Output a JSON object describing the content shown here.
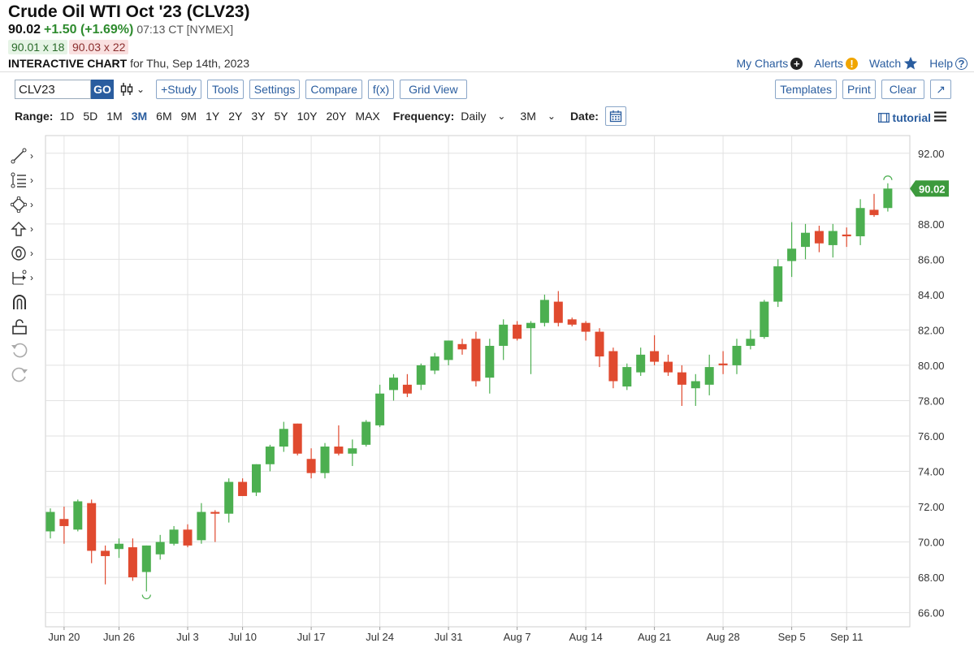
{
  "header": {
    "title": "Crude Oil WTI Oct '23 (CLV23)",
    "last": "90.02",
    "change": "+1.50 (+1.69%)",
    "time": "07:13 CT [NYMEX]",
    "bid": "90.01 x 18",
    "ask": "90.03 x 22",
    "chart_label": "INTERACTIVE CHART",
    "chart_for": "for Thu, Sep 14th, 2023"
  },
  "top_links": {
    "my_charts": "My Charts",
    "alerts": "Alerts",
    "watch": "Watch",
    "help": "Help"
  },
  "toolbar": {
    "symbol": "CLV23",
    "go": "GO",
    "study": "+Study",
    "tools": "Tools",
    "settings": "Settings",
    "compare": "Compare",
    "fx": "f(x)",
    "grid_view": "Grid View",
    "templates": "Templates",
    "print": "Print",
    "clear": "Clear",
    "expand": "↗"
  },
  "range_bar": {
    "range_label": "Range:",
    "ranges": [
      "1D",
      "5D",
      "1M",
      "3M",
      "6M",
      "9M",
      "1Y",
      "2Y",
      "3Y",
      "5Y",
      "10Y",
      "20Y",
      "MAX"
    ],
    "active_range": "3M",
    "frequency_label": "Frequency:",
    "frequency_value": "Daily",
    "period_value": "3M",
    "date_label": "Date:",
    "tutorial": "tutorial"
  },
  "colors": {
    "up": "#4caf50",
    "down": "#e04a2f",
    "accent": "#2a5d9f",
    "price_tag": "#3d9a3d"
  },
  "chart_data": {
    "type": "candlestick",
    "title": "Crude Oil WTI Oct '23 (CLV23)",
    "frequency": "Daily",
    "ylim": [
      65.2,
      93.0
    ],
    "y_ticks": [
      "66.00",
      "68.00",
      "70.00",
      "72.00",
      "74.00",
      "76.00",
      "78.00",
      "80.00",
      "82.00",
      "84.00",
      "86.00",
      "88.00",
      "90.00",
      "92.00"
    ],
    "x_ticks": [
      {
        "label": "Jun 20",
        "index": 1
      },
      {
        "label": "Jun 26",
        "index": 5
      },
      {
        "label": "Jul 3",
        "index": 10
      },
      {
        "label": "Jul 10",
        "index": 14
      },
      {
        "label": "Jul 17",
        "index": 19
      },
      {
        "label": "Jul 24",
        "index": 24
      },
      {
        "label": "Jul 31",
        "index": 29
      },
      {
        "label": "Aug 7",
        "index": 34
      },
      {
        "label": "Aug 14",
        "index": 39
      },
      {
        "label": "Aug 21",
        "index": 44
      },
      {
        "label": "Aug 28",
        "index": 49
      },
      {
        "label": "Sep 5",
        "index": 54
      },
      {
        "label": "Sep 11",
        "index": 58
      }
    ],
    "last_price_label": "90.02",
    "candles": [
      {
        "o": 70.6,
        "h": 71.9,
        "l": 70.2,
        "c": 71.7
      },
      {
        "o": 71.3,
        "h": 72.0,
        "l": 69.9,
        "c": 70.9
      },
      {
        "o": 70.7,
        "h": 72.4,
        "l": 70.6,
        "c": 72.3
      },
      {
        "o": 72.2,
        "h": 72.4,
        "l": 68.8,
        "c": 69.5
      },
      {
        "o": 69.5,
        "h": 69.8,
        "l": 67.6,
        "c": 69.2
      },
      {
        "o": 69.6,
        "h": 70.2,
        "l": 69.1,
        "c": 69.9
      },
      {
        "o": 69.7,
        "h": 70.2,
        "l": 67.8,
        "c": 68.0
      },
      {
        "o": 68.3,
        "h": 69.8,
        "l": 67.2,
        "c": 69.8
      },
      {
        "o": 69.3,
        "h": 70.4,
        "l": 69.0,
        "c": 70.0
      },
      {
        "o": 69.9,
        "h": 70.9,
        "l": 69.8,
        "c": 70.7
      },
      {
        "o": 70.7,
        "h": 71.0,
        "l": 69.7,
        "c": 69.8
      },
      {
        "o": 70.1,
        "h": 72.2,
        "l": 69.9,
        "c": 71.7
      },
      {
        "o": 71.7,
        "h": 71.8,
        "l": 70.0,
        "c": 71.6
      },
      {
        "o": 71.6,
        "h": 73.6,
        "l": 71.1,
        "c": 73.4
      },
      {
        "o": 73.4,
        "h": 73.6,
        "l": 72.6,
        "c": 72.6
      },
      {
        "o": 72.8,
        "h": 74.4,
        "l": 72.6,
        "c": 74.4
      },
      {
        "o": 74.4,
        "h": 75.5,
        "l": 74.0,
        "c": 75.4
      },
      {
        "o": 75.4,
        "h": 76.8,
        "l": 75.1,
        "c": 76.4
      },
      {
        "o": 76.7,
        "h": 76.7,
        "l": 74.9,
        "c": 75.0
      },
      {
        "o": 74.7,
        "h": 75.3,
        "l": 73.6,
        "c": 73.9
      },
      {
        "o": 73.9,
        "h": 75.6,
        "l": 73.6,
        "c": 75.4
      },
      {
        "o": 75.4,
        "h": 76.6,
        "l": 74.9,
        "c": 75.0
      },
      {
        "o": 75.0,
        "h": 75.8,
        "l": 74.3,
        "c": 75.3
      },
      {
        "o": 75.5,
        "h": 76.9,
        "l": 75.4,
        "c": 76.8
      },
      {
        "o": 76.6,
        "h": 78.9,
        "l": 76.5,
        "c": 78.4
      },
      {
        "o": 78.6,
        "h": 79.5,
        "l": 78.0,
        "c": 79.3
      },
      {
        "o": 78.9,
        "h": 79.5,
        "l": 78.2,
        "c": 78.4
      },
      {
        "o": 78.9,
        "h": 80.1,
        "l": 78.6,
        "c": 80.0
      },
      {
        "o": 79.7,
        "h": 80.7,
        "l": 79.5,
        "c": 80.5
      },
      {
        "o": 80.3,
        "h": 81.4,
        "l": 80.0,
        "c": 81.4
      },
      {
        "o": 81.2,
        "h": 81.5,
        "l": 80.6,
        "c": 80.9
      },
      {
        "o": 81.5,
        "h": 81.9,
        "l": 78.8,
        "c": 79.1
      },
      {
        "o": 79.3,
        "h": 81.5,
        "l": 78.4,
        "c": 81.1
      },
      {
        "o": 81.1,
        "h": 82.6,
        "l": 80.3,
        "c": 82.3
      },
      {
        "o": 82.3,
        "h": 82.5,
        "l": 81.4,
        "c": 81.5
      },
      {
        "o": 82.1,
        "h": 82.5,
        "l": 79.5,
        "c": 82.4
      },
      {
        "o": 82.4,
        "h": 84.0,
        "l": 82.2,
        "c": 83.7
      },
      {
        "o": 83.6,
        "h": 84.2,
        "l": 82.2,
        "c": 82.4
      },
      {
        "o": 82.6,
        "h": 82.7,
        "l": 82.2,
        "c": 82.3
      },
      {
        "o": 82.4,
        "h": 82.5,
        "l": 81.4,
        "c": 81.9
      },
      {
        "o": 81.9,
        "h": 82.1,
        "l": 79.9,
        "c": 80.5
      },
      {
        "o": 80.8,
        "h": 81.0,
        "l": 78.7,
        "c": 79.1
      },
      {
        "o": 78.8,
        "h": 80.1,
        "l": 78.6,
        "c": 79.9
      },
      {
        "o": 79.6,
        "h": 81.0,
        "l": 79.4,
        "c": 80.6
      },
      {
        "o": 80.8,
        "h": 81.7,
        "l": 80.0,
        "c": 80.2
      },
      {
        "o": 80.2,
        "h": 80.6,
        "l": 79.4,
        "c": 79.6
      },
      {
        "o": 79.6,
        "h": 80.0,
        "l": 77.7,
        "c": 78.9
      },
      {
        "o": 78.7,
        "h": 79.5,
        "l": 77.7,
        "c": 79.1
      },
      {
        "o": 78.9,
        "h": 80.6,
        "l": 78.3,
        "c": 79.9
      },
      {
        "o": 80.1,
        "h": 80.8,
        "l": 79.5,
        "c": 80.0
      },
      {
        "o": 80.0,
        "h": 81.5,
        "l": 79.5,
        "c": 81.1
      },
      {
        "o": 81.1,
        "h": 82.0,
        "l": 80.9,
        "c": 81.5
      },
      {
        "o": 81.6,
        "h": 83.7,
        "l": 81.5,
        "c": 83.6
      },
      {
        "o": 83.6,
        "h": 86.0,
        "l": 83.3,
        "c": 85.6
      },
      {
        "o": 85.9,
        "h": 88.1,
        "l": 85.0,
        "c": 86.6
      },
      {
        "o": 86.7,
        "h": 88.0,
        "l": 86.0,
        "c": 87.5
      },
      {
        "o": 87.6,
        "h": 87.9,
        "l": 86.4,
        "c": 86.9
      },
      {
        "o": 86.8,
        "h": 88.0,
        "l": 86.1,
        "c": 87.6
      },
      {
        "o": 87.4,
        "h": 87.8,
        "l": 86.7,
        "c": 87.3
      },
      {
        "o": 87.3,
        "h": 89.4,
        "l": 86.8,
        "c": 88.9
      },
      {
        "o": 88.8,
        "h": 89.7,
        "l": 88.4,
        "c": 88.5
      },
      {
        "o": 88.9,
        "h": 90.3,
        "l": 88.7,
        "c": 90.0
      }
    ]
  }
}
